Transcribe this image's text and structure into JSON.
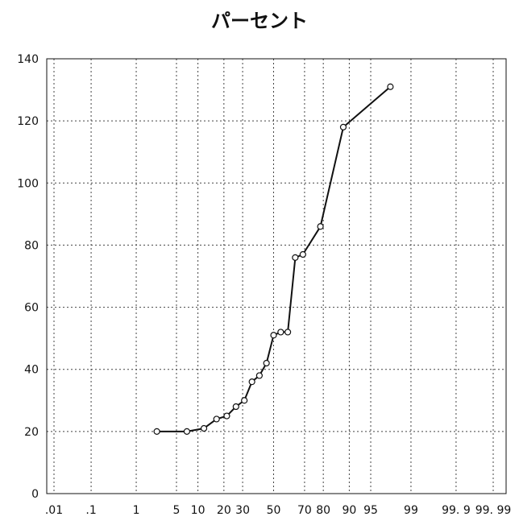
{
  "chart_data": {
    "type": "line",
    "title": "パーセント",
    "xlabel": "",
    "ylabel": "",
    "x_scale": "normal-probability",
    "x_ticks": [
      {
        "value": 0.01,
        "label": ".01"
      },
      {
        "value": 0.1,
        "label": ".1"
      },
      {
        "value": 1,
        "label": "1"
      },
      {
        "value": 5,
        "label": "5"
      },
      {
        "value": 10,
        "label": "10"
      },
      {
        "value": 20,
        "label": "20"
      },
      {
        "value": 30,
        "label": "30"
      },
      {
        "value": 50,
        "label": "50"
      },
      {
        "value": 70,
        "label": "70"
      },
      {
        "value": 80,
        "label": "80"
      },
      {
        "value": 90,
        "label": "90"
      },
      {
        "value": 95,
        "label": "95"
      },
      {
        "value": 99,
        "label": "99"
      },
      {
        "value": 99.9,
        "label": "99. 9"
      },
      {
        "value": 99.99,
        "label": "99. 99"
      }
    ],
    "y_ticks": [
      {
        "value": 0,
        "label": "0"
      },
      {
        "value": 20,
        "label": "20"
      },
      {
        "value": 40,
        "label": "40"
      },
      {
        "value": 60,
        "label": "60"
      },
      {
        "value": 80,
        "label": "80"
      },
      {
        "value": 100,
        "label": "100"
      },
      {
        "value": 120,
        "label": "120"
      },
      {
        "value": 140,
        "label": "140"
      }
    ],
    "ylim": [
      0,
      140
    ],
    "grid": true,
    "series": [
      {
        "values": [
          {
            "x": 2.4,
            "y": 20
          },
          {
            "x": 7.1,
            "y": 20
          },
          {
            "x": 11.9,
            "y": 21
          },
          {
            "x": 16.7,
            "y": 24
          },
          {
            "x": 21.4,
            "y": 25
          },
          {
            "x": 26.2,
            "y": 28
          },
          {
            "x": 31.0,
            "y": 30
          },
          {
            "x": 35.7,
            "y": 36
          },
          {
            "x": 40.5,
            "y": 38
          },
          {
            "x": 45.2,
            "y": 42
          },
          {
            "x": 50.0,
            "y": 51
          },
          {
            "x": 54.8,
            "y": 52
          },
          {
            "x": 59.5,
            "y": 52
          },
          {
            "x": 64.3,
            "y": 76
          },
          {
            "x": 69.0,
            "y": 77
          },
          {
            "x": 78.6,
            "y": 86
          },
          {
            "x": 88.1,
            "y": 118
          },
          {
            "x": 97.6,
            "y": 131
          }
        ]
      }
    ]
  }
}
